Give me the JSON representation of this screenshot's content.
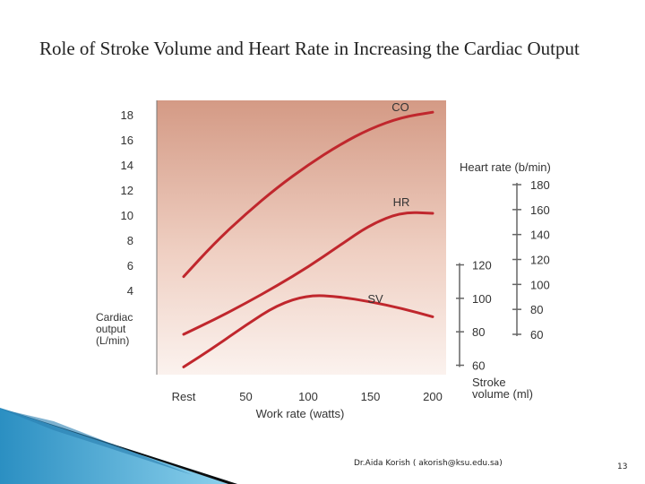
{
  "slide": {
    "title": "Role of Stroke Volume and Heart Rate in Increasing the Cardiac Output",
    "footer": "Dr.Aida Korish ( akorish@ksu.edu.sa)",
    "page_number": "13"
  },
  "colors": {
    "curve": "#c0272d",
    "plot_top": "#d49a85",
    "plot_bottom": "#fbf2ee",
    "axis": "#666666",
    "wedge_dark": "#0d0d0d",
    "wedge_blue": "#3aa6d6"
  },
  "chart_data": {
    "type": "line",
    "title": "",
    "x": [
      "Rest",
      50,
      100,
      150,
      200
    ],
    "xlabel": "Work rate (watts)",
    "grid": false,
    "axes": {
      "cardiac_output": {
        "label": [
          "Cardiac",
          "output",
          "(L/min)"
        ],
        "ticks": [
          4,
          6,
          8,
          10,
          12,
          14,
          16,
          18
        ],
        "range": [
          2,
          19
        ]
      },
      "heart_rate": {
        "label": "Heart rate (b/min)",
        "ticks": [
          60,
          80,
          100,
          120,
          140,
          160,
          180
        ],
        "range": [
          60,
          180
        ]
      },
      "stroke_volume": {
        "label": [
          "Stroke",
          "volume (ml)"
        ],
        "ticks": [
          60,
          80,
          100,
          120
        ],
        "range": [
          60,
          120
        ]
      }
    },
    "series": [
      {
        "name": "CO",
        "axis": "cardiac_output",
        "x": [
          0,
          25,
          50,
          75,
          100,
          125,
          150,
          175,
          200
        ],
        "values": [
          5.1,
          7.8,
          10.1,
          12.2,
          14.0,
          15.6,
          16.9,
          17.8,
          18.2
        ]
      },
      {
        "name": "HR",
        "axis": "heart_rate",
        "x": [
          0,
          25,
          50,
          75,
          100,
          125,
          150,
          175,
          200
        ],
        "values": [
          60,
          72,
          85,
          99,
          114,
          131,
          148,
          158,
          157
        ]
      },
      {
        "name": "SV",
        "axis": "stroke_volume",
        "x": [
          0,
          25,
          50,
          75,
          100,
          125,
          150,
          175,
          200
        ],
        "values": [
          59,
          71,
          84,
          96,
          102,
          101,
          98,
          94,
          89
        ]
      }
    ]
  }
}
